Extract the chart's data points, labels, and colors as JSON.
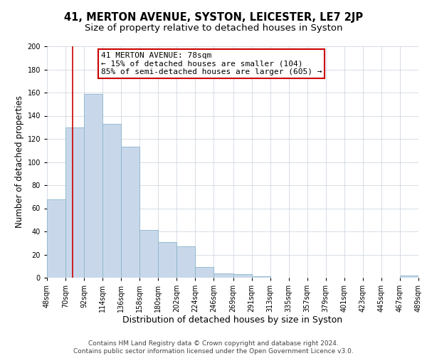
{
  "title": "41, MERTON AVENUE, SYSTON, LEICESTER, LE7 2JP",
  "subtitle": "Size of property relative to detached houses in Syston",
  "xlabel": "Distribution of detached houses by size in Syston",
  "ylabel": "Number of detached properties",
  "bar_color": "#c8d8ea",
  "bar_edge_color": "#8ab4cc",
  "background_color": "#ffffff",
  "grid_color": "#c8d0dc",
  "property_line_x": 78,
  "property_line_color": "#cc0000",
  "annotation_line1": "41 MERTON AVENUE: 78sqm",
  "annotation_line2": "← 15% of detached houses are smaller (104)",
  "annotation_line3": "85% of semi-detached houses are larger (605) →",
  "annotation_box_color": "#cc0000",
  "bin_edges": [
    48,
    70,
    92,
    114,
    136,
    158,
    180,
    202,
    224,
    246,
    269,
    291,
    313,
    335,
    357,
    379,
    401,
    423,
    445,
    467,
    489
  ],
  "bar_heights": [
    68,
    130,
    159,
    133,
    113,
    41,
    31,
    27,
    9,
    4,
    3,
    1,
    0,
    0,
    0,
    0,
    0,
    0,
    0,
    2
  ],
  "ylim": [
    0,
    200
  ],
  "yticks": [
    0,
    20,
    40,
    60,
    80,
    100,
    120,
    140,
    160,
    180,
    200
  ],
  "footer_text": "Contains HM Land Registry data © Crown copyright and database right 2024.\nContains public sector information licensed under the Open Government Licence v3.0.",
  "title_fontsize": 10.5,
  "subtitle_fontsize": 9.5,
  "xlabel_fontsize": 9,
  "ylabel_fontsize": 8.5,
  "tick_fontsize": 7,
  "footer_fontsize": 6.5,
  "annotation_fontsize": 8
}
